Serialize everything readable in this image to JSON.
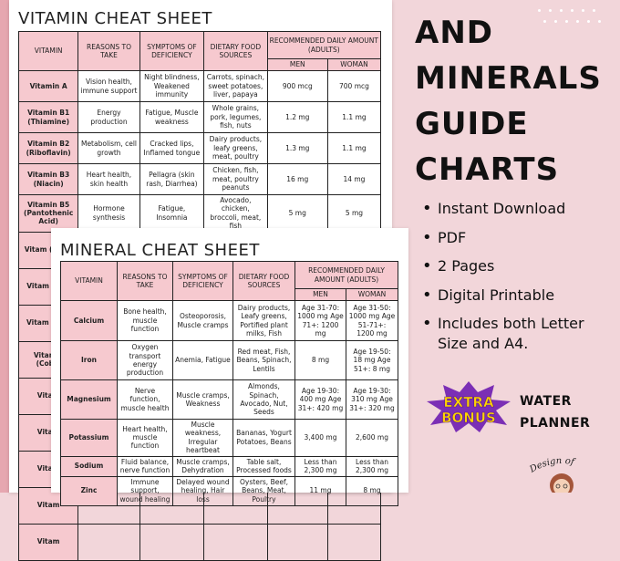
{
  "vitamin_sheet": {
    "title": "VITAMIN CHEAT SHEET",
    "headers": {
      "vitamin": "VITAMIN",
      "reasons": "REASONS TO TAKE",
      "symptoms": "SYMPTOMS OF DEFICIENCY",
      "sources": "DIETARY FOOD SOURCES",
      "recommended": "RECOMMENDED DAILY AMOUNT (ADULTS)",
      "men": "MEN",
      "women": "WOMAN"
    },
    "rows": [
      {
        "name": "Vitamin A",
        "reasons": "Vision health, immune support",
        "symptoms": "Night blindness, Weakened immunity",
        "sources": "Carrots, spinach, sweet potatoes, liver, papaya",
        "men": "900 mcg",
        "women": "700 mcg"
      },
      {
        "name": "Vitamin B1 (Thiamine)",
        "reasons": "Energy production",
        "symptoms": "Fatigue, Muscle weakness",
        "sources": "Whole grains, pork, legumes, fish, nuts",
        "men": "1.2 mg",
        "women": "1.1 mg"
      },
      {
        "name": "Vitamin B2 (Riboflavin)",
        "reasons": "Metabolism, cell growth",
        "symptoms": "Cracked lips, Inflamed tongue",
        "sources": "Dairy products, leafy greens, meat, poultry",
        "men": "1.3 mg",
        "women": "1.1 mg"
      },
      {
        "name": "Vitamin B3 (Niacin)",
        "reasons": "Heart health, skin health",
        "symptoms": "Pellagra (skin rash, Diarrhea)",
        "sources": "Chicken, fish, meat, poultry peanuts",
        "men": "16 mg",
        "women": "14 mg"
      },
      {
        "name": "Vitamin B5 (Pantothenic Acid)",
        "reasons": "Hormone synthesis",
        "symptoms": "Fatigue, Insomnia",
        "sources": "Avocado, chicken, broccoli, meat, fish",
        "men": "5 mg",
        "women": "5 mg"
      },
      {
        "name": "Vitam (Pyrid",
        "reasons": "",
        "symptoms": "",
        "sources": "",
        "men": "",
        "women": ""
      },
      {
        "name": "Vitam (Biot",
        "reasons": "",
        "symptoms": "",
        "sources": "",
        "men": "",
        "women": ""
      },
      {
        "name": "Vitam (Fola",
        "reasons": "",
        "symptoms": "",
        "sources": "",
        "men": "",
        "women": ""
      },
      {
        "name": "Vitamin (Cobal",
        "reasons": "",
        "symptoms": "",
        "sources": "",
        "men": "",
        "women": ""
      },
      {
        "name": "Vitam",
        "reasons": "",
        "symptoms": "",
        "sources": "",
        "men": "",
        "women": ""
      },
      {
        "name": "Vitam",
        "reasons": "",
        "symptoms": "",
        "sources": "",
        "men": "",
        "women": ""
      },
      {
        "name": "Vitam",
        "reasons": "",
        "symptoms": "",
        "sources": "",
        "men": "",
        "women": ""
      },
      {
        "name": "Vitam",
        "reasons": "",
        "symptoms": "",
        "sources": "",
        "men": "",
        "women": ""
      },
      {
        "name": "Vitam",
        "reasons": "",
        "symptoms": "",
        "sources": "",
        "men": "",
        "women": ""
      }
    ]
  },
  "mineral_sheet": {
    "title": "MINERAL CHEAT SHEET",
    "headers": {
      "vitamin": "VITAMIN",
      "reasons": "REASONS TO TAKE",
      "symptoms": "SYMPTOMS OF DEFICIENCY",
      "sources": "DIETARY FOOD SOURCES",
      "recommended": "RECOMMENDED DAILY AMOUNT (ADULTS)",
      "men": "MEN",
      "women": "WOMAN"
    },
    "rows": [
      {
        "name": "Calcium",
        "reasons": "Bone health, muscle function",
        "symptoms": "Osteoporosis, Muscle cramps",
        "sources": "Dairy products, Leafy greens, Portified plant milks, Fish",
        "men": "Age 31-70: 1000 mg Age 71+: 1200 mg",
        "women": "Age 31-50: 1000 mg Age 51-71+: 1200 mg"
      },
      {
        "name": "Iron",
        "reasons": "Oxygen transport energy production",
        "symptoms": "Anemia, Fatigue",
        "sources": "Red meat, Fish, Beans, Spinach, Lentils",
        "men": "8 mg",
        "women": "Age 19-50: 18 mg Age 51+: 8 mg"
      },
      {
        "name": "Magnesium",
        "reasons": "Nerve function, muscle health",
        "symptoms": "Muscle cramps, Weakness",
        "sources": "Almonds, Spinach, Avocado, Nut, Seeds",
        "men": "Age 19-30: 400 mg Age 31+: 420 mg",
        "women": "Age 19-30: 310 mg Age 31+: 320 mg"
      },
      {
        "name": "Potassium",
        "reasons": "Heart health, muscle function",
        "symptoms": "Muscle weakness, Irregular heartbeat",
        "sources": "Bananas, Yogurt Potatoes, Beans",
        "men": "3,400 mg",
        "women": "2,600 mg"
      },
      {
        "name": "Sodium",
        "reasons": "Fluid balance, nerve function",
        "symptoms": "Muscle cramps, Dehydration",
        "sources": "Table salt, Processed foods",
        "men": "Less than 2,300 mg",
        "women": "Less than 2,300 mg"
      },
      {
        "name": "Zinc",
        "reasons": "Immune support, wound healing",
        "symptoms": "Delayed wound healing, Hair loss",
        "sources": "Oysters, Beef, Beans, Meat, Poultry",
        "men": "11 mg",
        "women": "8 mg"
      }
    ]
  },
  "promo": {
    "headline": [
      "AND",
      "MINERALS",
      "GUIDE",
      "CHARTS"
    ],
    "bullets": [
      "Instant Download",
      "PDF",
      "2 Pages",
      "Digital Printable",
      "Includes both Letter Size and A4."
    ],
    "bonus_line1": "EXTRA",
    "bonus_line2": "BONUS",
    "bonus_product_line1": "WATER",
    "bonus_product_line2": "PLANNER",
    "designer_text": "Design of"
  },
  "colors": {
    "background": "#f2d6da",
    "header_pink": "#f6c9cf",
    "bonus_purple": "#7b2fb5",
    "bonus_yellow": "#ffd400"
  }
}
